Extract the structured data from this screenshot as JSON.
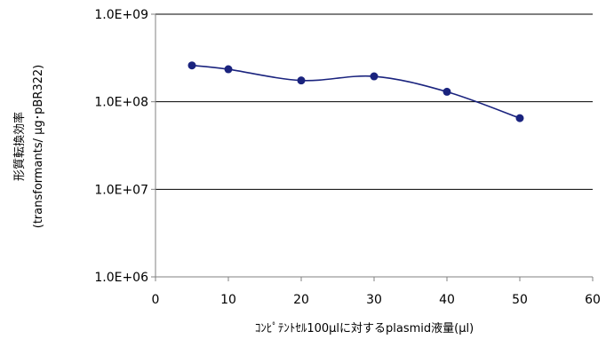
{
  "chart_data": {
    "type": "line",
    "title": "",
    "xlabel": "ｺﾝﾋﾟﾃﾝﾄｾﾙ100μlに対するplasmid液量(μl)",
    "ylabel": "形質転換効率",
    "ylabel_sub": "(transformants/ μg･pBR322)",
    "x_ticks": [
      "0",
      "10",
      "20",
      "30",
      "40",
      "50",
      "60"
    ],
    "y_ticks": [
      "1.0E+06",
      "1.0E+07",
      "1.0E+08",
      "1.0E+09"
    ],
    "xlim": [
      0,
      60
    ],
    "ylim": [
      1000000,
      1000000000
    ],
    "y_scale": "log",
    "grid": "horizontal",
    "legend": "none",
    "series": [
      {
        "color": "#1a237e",
        "x": [
          5,
          10,
          20,
          30,
          40,
          50
        ],
        "y": [
          260000000,
          235000000,
          175000000,
          195000000,
          130000000,
          65000000
        ]
      }
    ]
  }
}
